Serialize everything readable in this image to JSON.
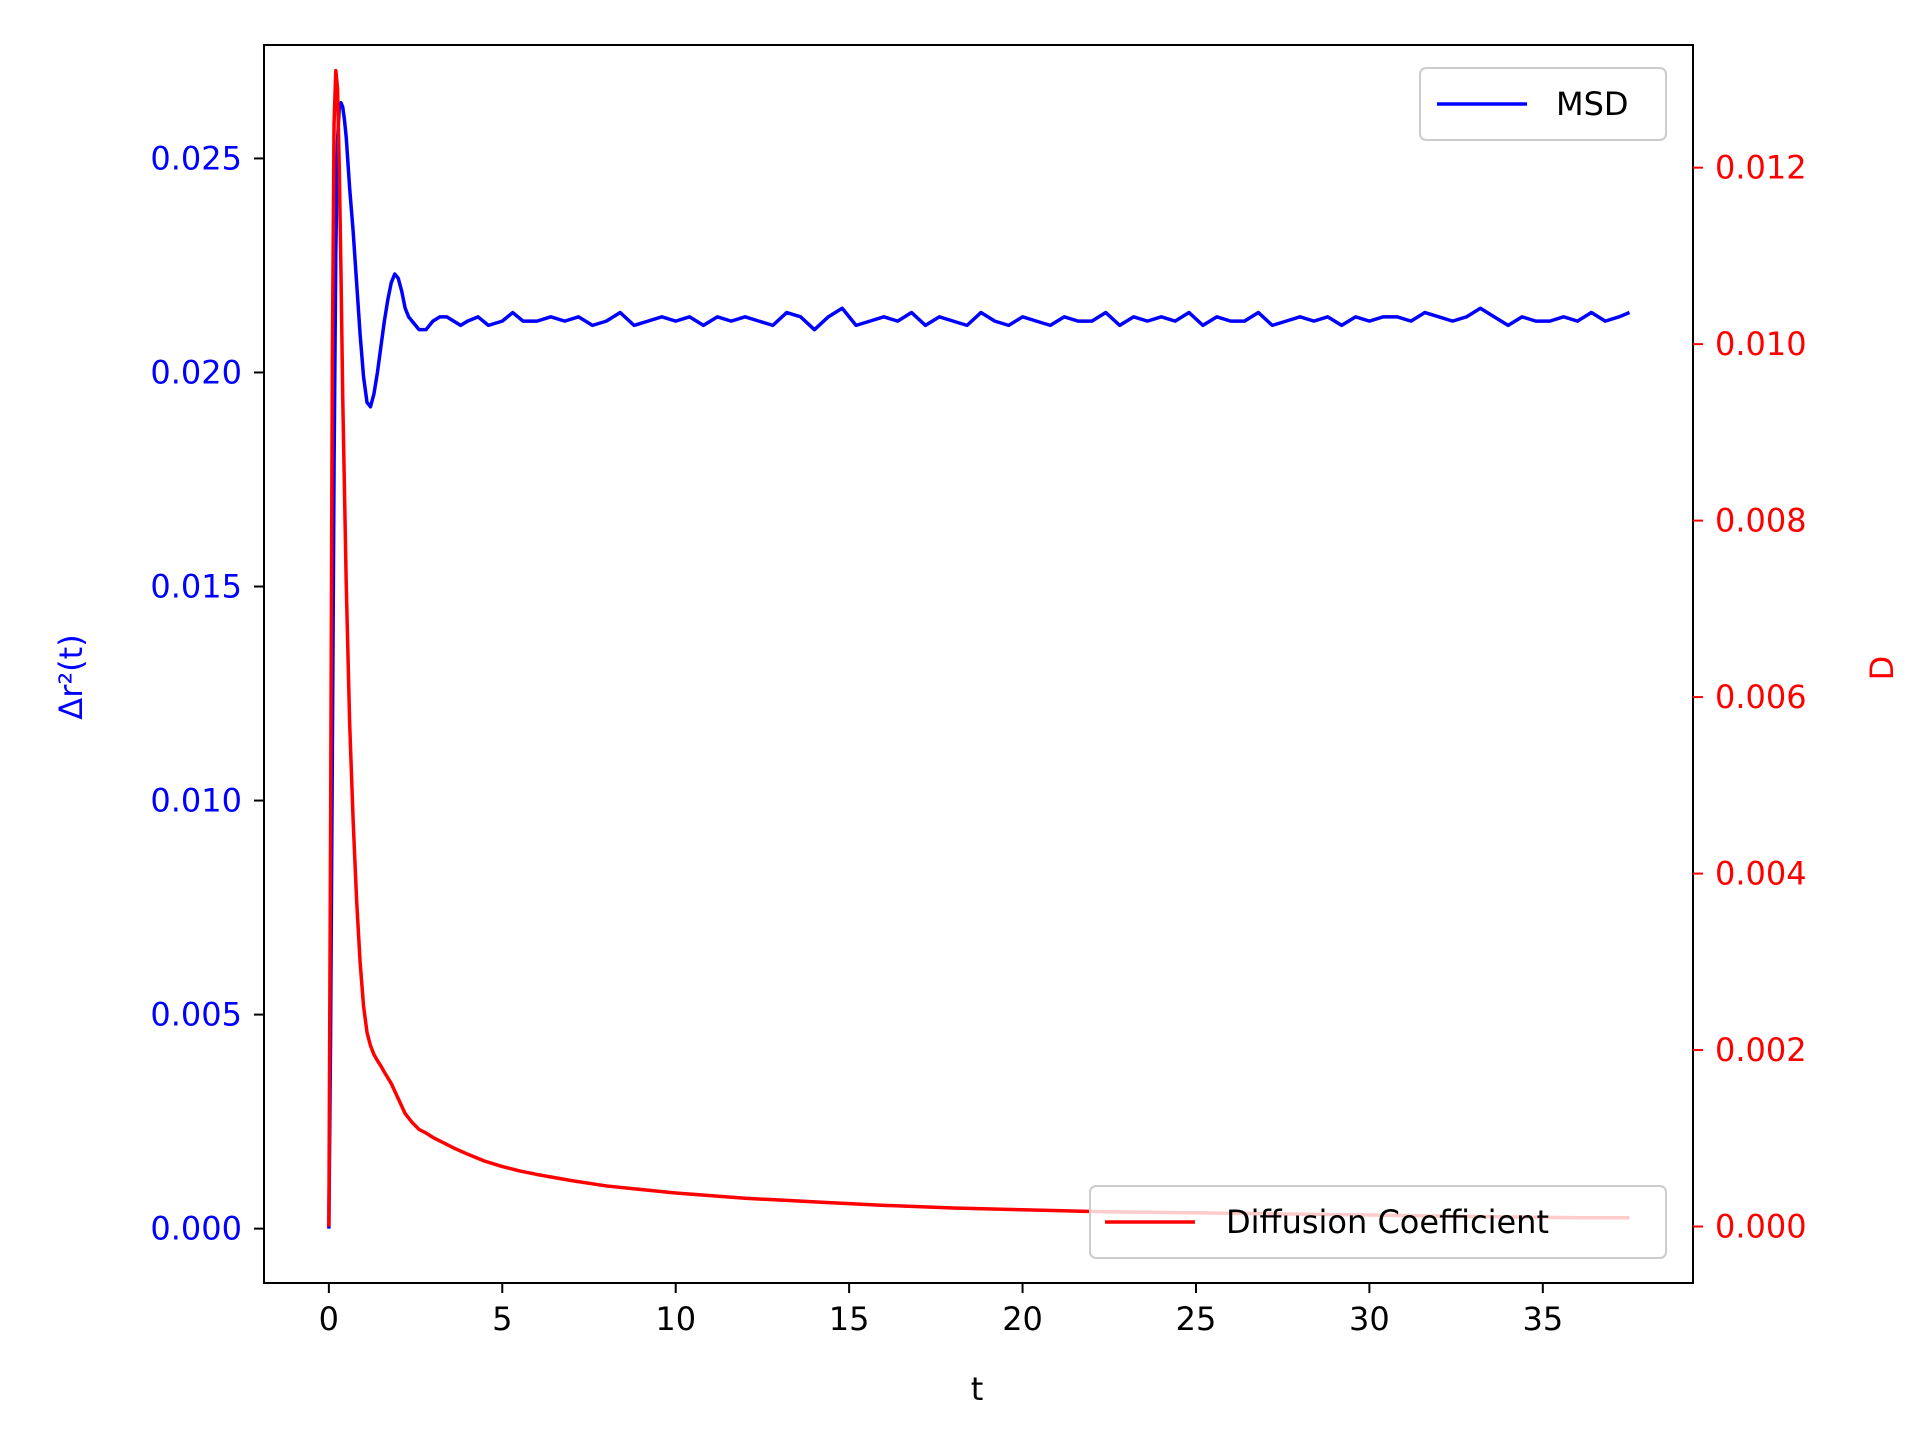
{
  "chart_data": {
    "type": "line",
    "xlabel": "t",
    "ylabel_left": "Δr²(t)",
    "ylabel_right": "D",
    "xlim": [
      -1.87,
      39.33
    ],
    "ylim_left": [
      -0.00127,
      0.02765
    ],
    "ylim_right": [
      -0.00064,
      0.01339
    ],
    "x_ticks": [
      0,
      5,
      10,
      15,
      20,
      25,
      30,
      35
    ],
    "y_left_ticks": [
      "0.000",
      "0.005",
      "0.010",
      "0.015",
      "0.020",
      "0.025"
    ],
    "y_right_ticks": [
      "0.000",
      "0.002",
      "0.004",
      "0.006",
      "0.008",
      "0.010",
      "0.012"
    ],
    "grid": false,
    "legends": [
      {
        "name": "MSD",
        "placement": "upper-right"
      },
      {
        "name": "Diffusion Coefficient",
        "placement": "lower-right"
      }
    ],
    "colors": {
      "msd": "#0000ff",
      "diffusion": "#ff0000",
      "frame": "#000000"
    },
    "series": [
      {
        "name": "MSD",
        "axis": "left",
        "x": [
          0,
          0.05,
          0.1,
          0.15,
          0.2,
          0.25,
          0.3,
          0.35,
          0.4,
          0.45,
          0.5,
          0.6,
          0.7,
          0.8,
          0.9,
          1.0,
          1.1,
          1.2,
          1.3,
          1.4,
          1.5,
          1.6,
          1.7,
          1.8,
          1.9,
          2.0,
          2.1,
          2.2,
          2.3,
          2.4,
          2.5,
          2.6,
          2.8,
          3.0,
          3.2,
          3.4,
          3.6,
          3.8,
          4.0,
          4.3,
          4.6,
          5.0,
          5.3,
          5.6,
          6.0,
          6.4,
          6.8,
          7.2,
          7.6,
          8.0,
          8.4,
          8.8,
          9.2,
          9.6,
          10.0,
          10.4,
          10.8,
          11.2,
          11.6,
          12.0,
          12.4,
          12.8,
          13.2,
          13.6,
          14.0,
          14.4,
          14.8,
          15.2,
          15.6,
          16.0,
          16.4,
          16.8,
          17.2,
          17.6,
          18.0,
          18.4,
          18.8,
          19.2,
          19.6,
          20.0,
          20.4,
          20.8,
          21.2,
          21.6,
          22.0,
          22.4,
          22.8,
          23.2,
          23.6,
          24.0,
          24.4,
          24.8,
          25.2,
          25.6,
          26.0,
          26.4,
          26.8,
          27.2,
          27.6,
          28.0,
          28.4,
          28.8,
          29.2,
          29.6,
          30.0,
          30.4,
          30.8,
          31.2,
          31.6,
          32.0,
          32.4,
          32.8,
          33.2,
          33.6,
          34.0,
          34.4,
          34.8,
          35.2,
          35.6,
          36.0,
          36.4,
          36.8,
          37.2,
          37.5
        ],
        "y": [
          0,
          0.0045,
          0.011,
          0.0178,
          0.0228,
          0.0254,
          0.0262,
          0.0263,
          0.0262,
          0.0259,
          0.0255,
          0.0243,
          0.0233,
          0.0221,
          0.0209,
          0.0199,
          0.0193,
          0.0192,
          0.0195,
          0.02,
          0.0206,
          0.0212,
          0.0217,
          0.0221,
          0.0223,
          0.0222,
          0.0219,
          0.0215,
          0.0213,
          0.0212,
          0.0211,
          0.021,
          0.021,
          0.0212,
          0.0213,
          0.0213,
          0.0212,
          0.0211,
          0.0212,
          0.0213,
          0.0211,
          0.0212,
          0.0214,
          0.0212,
          0.0212,
          0.0213,
          0.0212,
          0.0213,
          0.0211,
          0.0212,
          0.0214,
          0.0211,
          0.0212,
          0.0213,
          0.0212,
          0.0213,
          0.0211,
          0.0213,
          0.0212,
          0.0213,
          0.0212,
          0.0211,
          0.0214,
          0.0213,
          0.021,
          0.0213,
          0.0215,
          0.0211,
          0.0212,
          0.0213,
          0.0212,
          0.0214,
          0.0211,
          0.0213,
          0.0212,
          0.0211,
          0.0214,
          0.0212,
          0.0211,
          0.0213,
          0.0212,
          0.0211,
          0.0213,
          0.0212,
          0.0212,
          0.0214,
          0.0211,
          0.0213,
          0.0212,
          0.0213,
          0.0212,
          0.0214,
          0.0211,
          0.0213,
          0.0212,
          0.0212,
          0.0214,
          0.0211,
          0.0212,
          0.0213,
          0.0212,
          0.0213,
          0.0211,
          0.0213,
          0.0212,
          0.0213,
          0.0213,
          0.0212,
          0.0214,
          0.0213,
          0.0212,
          0.0213,
          0.0215,
          0.0213,
          0.0211,
          0.0213,
          0.0212,
          0.0212,
          0.0213,
          0.0212,
          0.0214,
          0.0212,
          0.0213,
          0.0214
        ]
      },
      {
        "name": "Diffusion Coefficient",
        "axis": "right",
        "x": [
          0,
          0.05,
          0.1,
          0.15,
          0.2,
          0.25,
          0.3,
          0.35,
          0.4,
          0.5,
          0.6,
          0.7,
          0.8,
          0.9,
          1.0,
          1.1,
          1.2,
          1.3,
          1.4,
          1.5,
          1.6,
          1.8,
          2.0,
          2.2,
          2.4,
          2.6,
          2.8,
          3.0,
          3.3,
          3.6,
          4.0,
          4.5,
          5.0,
          5.5,
          6.0,
          7.0,
          8.0,
          9.0,
          10.0,
          11.0,
          12.0,
          13.0,
          14.0,
          15.0,
          16.0,
          18.0,
          20.0,
          22.0,
          24.0,
          26.0,
          28.0,
          30.0,
          32.0,
          34.0,
          36.0,
          37.5
        ],
        "y": [
          0,
          0.0045,
          0.0098,
          0.0125,
          0.0131,
          0.0129,
          0.012,
          0.0108,
          0.0094,
          0.0073,
          0.0057,
          0.0046,
          0.0037,
          0.003,
          0.0025,
          0.0022,
          0.00205,
          0.00195,
          0.00188,
          0.00182,
          0.00175,
          0.00162,
          0.00145,
          0.00128,
          0.00118,
          0.0011,
          0.00106,
          0.00101,
          0.00095,
          0.00089,
          0.00082,
          0.00074,
          0.00068,
          0.00063,
          0.00059,
          0.00052,
          0.00046,
          0.00042,
          0.00038,
          0.00035,
          0.00032,
          0.0003,
          0.00028,
          0.00026,
          0.00024,
          0.00021,
          0.00019,
          0.00017,
          0.00016,
          0.00015,
          0.00014,
          0.00013,
          0.00012,
          0.00011,
          0.0001,
          0.0001
        ]
      }
    ]
  }
}
